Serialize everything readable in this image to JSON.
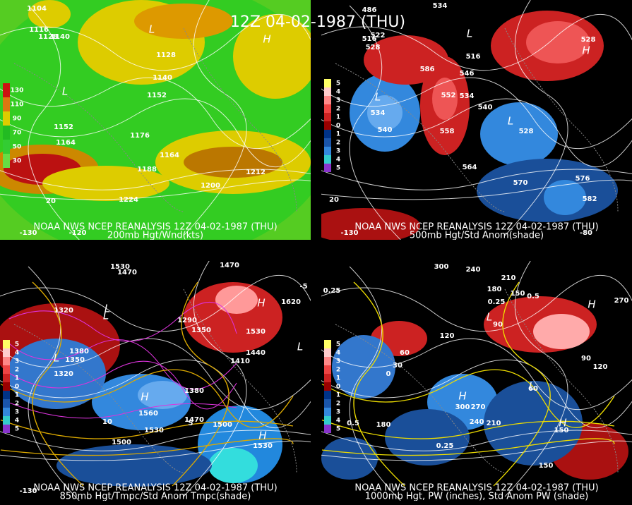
{
  "title": "12Z 04-02-1987 (THU)",
  "panels": [
    {
      "source": "NOAA NWS NCEP REANALYSIS 12Z 04-02-1987 (THU)",
      "caption": "200mb Hgt/Wnd(kts)",
      "legend": [
        "130",
        "110",
        "90",
        "70",
        "50",
        "30"
      ],
      "labels": [
        "1104",
        "1116",
        "1128",
        "1140",
        "L",
        "1128",
        "H",
        "1140",
        "1152",
        "L",
        "1152",
        "1164",
        "1176",
        "1164",
        "1188",
        "1200",
        "1212",
        "1224",
        "-130",
        "-120",
        "20"
      ]
    },
    {
      "source": "NOAA NWS NCEP REANALYSIS 12Z 04-02-1987 (THU)",
      "caption": "500mb Hgt/Std Anom(shade)",
      "legend": [
        "5",
        "4",
        "3",
        "2",
        "1",
        "0",
        "1",
        "2",
        "3",
        "4",
        "5"
      ],
      "labels": [
        "534",
        "486",
        "522",
        "516",
        "528",
        "L",
        "516",
        "528",
        "H",
        "586",
        "546",
        "534",
        "552",
        "540",
        "L",
        "534",
        "540",
        "558",
        "L",
        "528",
        "564",
        "570",
        "576",
        "582",
        "20",
        "-130",
        "-80"
      ]
    },
    {
      "source": "NOAA NWS NCEP REANALYSIS 12Z 04-02-1987 (THU)",
      "caption": "850mb Hgt/Tmpc/Std Anom Tmpc(shade)",
      "legend": [
        "5",
        "4",
        "3",
        "2",
        "1",
        "0",
        "1",
        "2",
        "3",
        "4",
        "5"
      ],
      "labels": [
        "1530",
        "1470",
        "1470",
        "1320",
        "L",
        "1380",
        "1350",
        "L",
        "1320",
        "L",
        "1290",
        "1350",
        "H",
        "1620",
        "1530",
        "1440",
        "1410",
        "L",
        "H",
        "1560",
        "1530",
        "1380",
        "1470",
        "1500",
        "H",
        "1530",
        "1500",
        "10",
        "5",
        "-5",
        "-130"
      ]
    },
    {
      "source": "NOAA NWS NCEP REANALYSIS 12Z 04-02-1987 (THU)",
      "caption": "1000mb Hgt, PW (inches), Std Anom PW (shade)",
      "legend": [
        "5",
        "4",
        "3",
        "2",
        "1",
        "0",
        "1",
        "2",
        "3",
        "4",
        "5"
      ],
      "labels": [
        "300",
        "240",
        "210",
        "180",
        "150",
        "0.25",
        "90",
        "L",
        "H",
        "120",
        "60",
        "30",
        "0",
        "H",
        "300",
        "270",
        "240",
        "210",
        "L",
        "60",
        "H",
        "120",
        "90",
        "180",
        "150",
        "0.5",
        "0.25",
        "150",
        "270",
        "0.5",
        "0.25"
      ]
    }
  ]
}
